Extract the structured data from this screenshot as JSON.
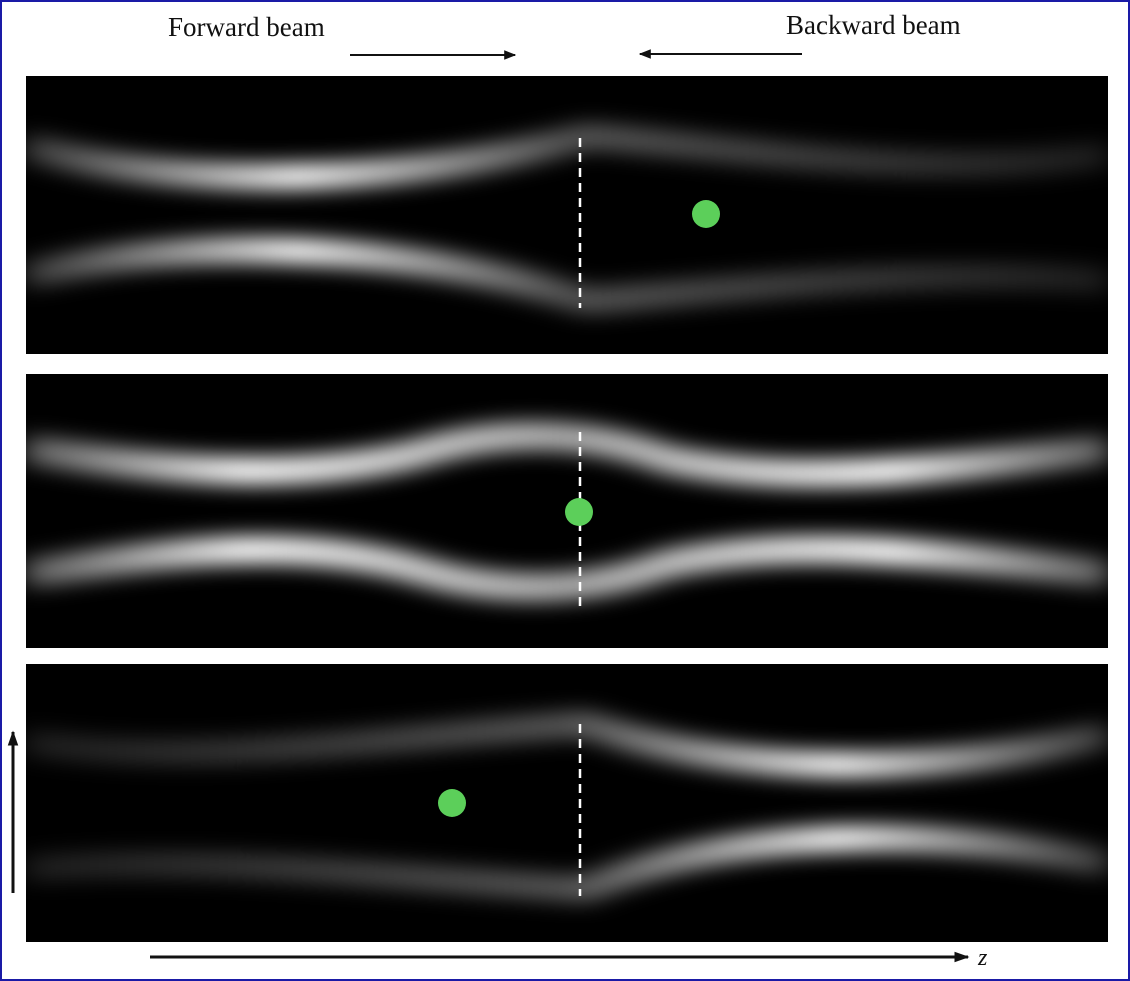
{
  "figure": {
    "forward_label": "Forward beam",
    "backward_label": "Backward beam",
    "z_axis_label": "z"
  },
  "colors": {
    "frame": "#1a1aa6",
    "background": "#000000",
    "beam": "#ffffff",
    "particle": "#5ccf5a",
    "divider": "#ffffff"
  },
  "panels": [
    {
      "name": "panel-top",
      "particle_side": "right"
    },
    {
      "name": "panel-middle",
      "particle_side": "center"
    },
    {
      "name": "panel-bottom",
      "particle_side": "left"
    }
  ]
}
